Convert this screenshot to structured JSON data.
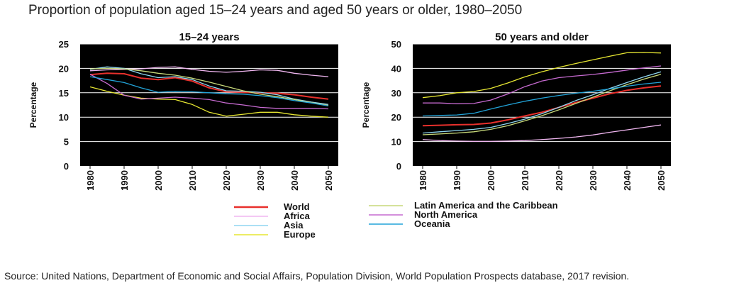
{
  "title": "Proportion of population aged 15–24 years and aged 50 years or older, 1980–2050",
  "source": "Source: United Nations, Department of Economic and Social Affairs, Population Division, World Population Prospects database, 2017 revision.",
  "chart_data": [
    {
      "type": "line",
      "title": "15–24 years",
      "ylabel": "Percentage",
      "xlabel": "",
      "ylim": [
        0,
        25
      ],
      "y_ticks": [
        0,
        5,
        10,
        15,
        20,
        25
      ],
      "x": [
        1980,
        1985,
        1990,
        1995,
        2000,
        2005,
        2010,
        2015,
        2020,
        2025,
        2030,
        2035,
        2040,
        2045,
        2050
      ],
      "series": [
        {
          "name": "World",
          "color": "#e8302c",
          "values": [
            18.7,
            19.0,
            18.9,
            18.0,
            17.7,
            18.1,
            17.4,
            16.0,
            15.2,
            15.1,
            15.0,
            14.9,
            14.6,
            14.1,
            13.7
          ]
        },
        {
          "name": "Africa",
          "color": "#f0b6f0",
          "values": [
            19.5,
            19.7,
            19.8,
            19.9,
            20.2,
            20.3,
            19.8,
            19.4,
            19.2,
            19.4,
            19.7,
            19.6,
            19.0,
            18.6,
            18.3
          ]
        },
        {
          "name": "Asia",
          "color": "#8fd6f0",
          "values": [
            19.8,
            20.3,
            20.0,
            18.9,
            18.1,
            18.3,
            17.7,
            16.4,
            15.4,
            15.3,
            15.1,
            14.6,
            13.7,
            13.1,
            12.6
          ]
        },
        {
          "name": "Europe",
          "color": "#e6e632",
          "values": [
            16.2,
            15.3,
            14.5,
            13.9,
            13.7,
            13.6,
            12.6,
            11.0,
            10.2,
            10.6,
            11.0,
            11.0,
            10.5,
            10.2,
            10.0
          ]
        },
        {
          "name": "Latin America and the Caribbean",
          "color": "#c7d97a",
          "values": [
            19.9,
            20.0,
            19.9,
            19.5,
            19.0,
            18.6,
            18.0,
            17.2,
            16.3,
            15.4,
            14.7,
            14.2,
            13.6,
            13.0,
            12.4
          ]
        },
        {
          "name": "North America",
          "color": "#c66ad0",
          "values": [
            18.8,
            16.9,
            14.5,
            13.7,
            13.9,
            14.1,
            13.9,
            13.6,
            12.9,
            12.5,
            12.0,
            11.8,
            11.8,
            11.8,
            11.7
          ]
        },
        {
          "name": "Oceania",
          "color": "#22a3d8",
          "values": [
            18.3,
            17.7,
            17.1,
            16.0,
            15.1,
            15.3,
            15.2,
            15.0,
            14.8,
            14.7,
            14.4,
            14.0,
            13.4,
            12.9,
            12.3
          ]
        }
      ]
    },
    {
      "type": "line",
      "title": "50 years and older",
      "ylabel": "Percentage",
      "xlabel": "",
      "ylim": [
        0,
        50
      ],
      "y_ticks": [
        0,
        10,
        20,
        30,
        40,
        50
      ],
      "x": [
        1980,
        1985,
        1990,
        1995,
        2000,
        2005,
        2010,
        2015,
        2020,
        2025,
        2030,
        2035,
        2040,
        2045,
        2050
      ],
      "series": [
        {
          "name": "World",
          "color": "#e8302c",
          "values": [
            16.5,
            16.7,
            16.9,
            17.0,
            17.6,
            18.9,
            20.5,
            22.0,
            24.0,
            26.0,
            27.8,
            29.6,
            31.0,
            32.0,
            32.8
          ]
        },
        {
          "name": "Africa",
          "color": "#f0b6f0",
          "values": [
            10.8,
            10.4,
            10.2,
            10.1,
            10.1,
            10.2,
            10.4,
            10.8,
            11.3,
            11.9,
            12.7,
            13.8,
            14.8,
            15.8,
            16.8
          ]
        },
        {
          "name": "Asia",
          "color": "#8fd6f0",
          "values": [
            13.5,
            14.0,
            14.5,
            15.0,
            15.8,
            17.4,
            19.2,
            21.4,
            24.0,
            26.8,
            29.2,
            31.8,
            34.2,
            36.5,
            38.6
          ]
        },
        {
          "name": "Europe",
          "color": "#e6e632",
          "values": [
            28.0,
            28.8,
            30.0,
            30.5,
            31.8,
            34.0,
            36.5,
            38.6,
            40.4,
            42.0,
            43.5,
            45.0,
            46.4,
            46.5,
            46.3
          ]
        },
        {
          "name": "Latin America and the Caribbean",
          "color": "#c7d97a",
          "values": [
            12.8,
            13.1,
            13.5,
            14.0,
            15.0,
            16.5,
            18.5,
            20.6,
            23.0,
            25.6,
            28.2,
            30.8,
            33.3,
            35.6,
            37.6
          ]
        },
        {
          "name": "North America",
          "color": "#c66ad0",
          "values": [
            25.8,
            25.8,
            25.5,
            25.6,
            27.0,
            29.5,
            32.5,
            34.8,
            36.2,
            36.9,
            37.5,
            38.3,
            39.3,
            40.2,
            41.0
          ]
        },
        {
          "name": "Oceania",
          "color": "#22a3d8",
          "values": [
            20.5,
            20.7,
            20.9,
            21.6,
            23.3,
            25.0,
            26.5,
            27.8,
            28.9,
            29.8,
            30.6,
            31.6,
            32.7,
            33.6,
            34.3
          ]
        }
      ]
    }
  ]
}
